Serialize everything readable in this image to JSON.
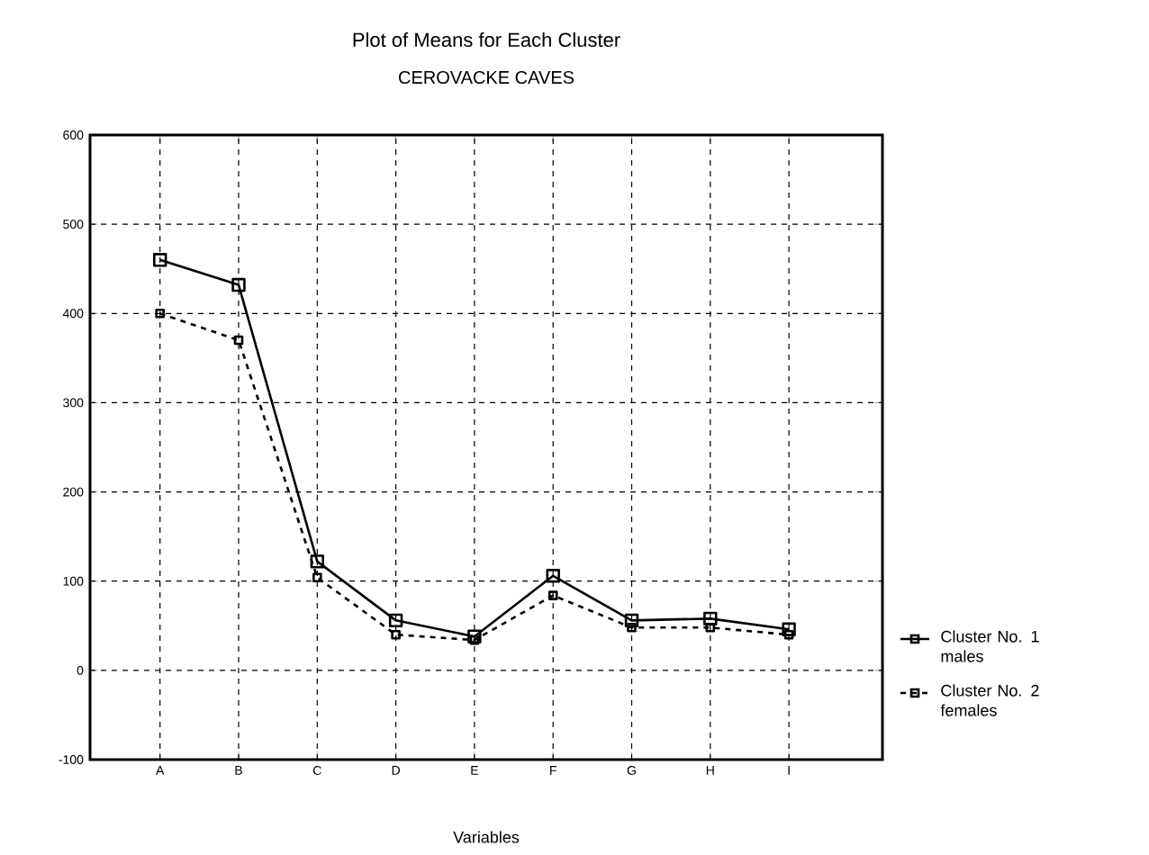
{
  "chart_data": {
    "type": "line",
    "title": "Plot of Means for Each Cluster",
    "subtitle": "CEROVACKE CAVES",
    "xlabel": "Variables",
    "categories": [
      "A",
      "B",
      "C",
      "D",
      "E",
      "F",
      "G",
      "H",
      "I"
    ],
    "series": [
      {
        "name": "Cluster No. 1 males",
        "color": "#000000",
        "line_style": "solid",
        "values": [
          460,
          432,
          122,
          56,
          38,
          106,
          56,
          58,
          46
        ]
      },
      {
        "name": "Cluster No. 2 females",
        "color": "#000000",
        "line_style": "dashed",
        "values": [
          400,
          370,
          104,
          40,
          34,
          84,
          48,
          48,
          40
        ]
      }
    ],
    "ylim": [
      -100,
      600
    ],
    "yticks": [
      -100,
      0,
      100,
      200,
      300,
      400,
      500,
      600
    ],
    "grid": true,
    "legend": "right",
    "marker": "square"
  }
}
